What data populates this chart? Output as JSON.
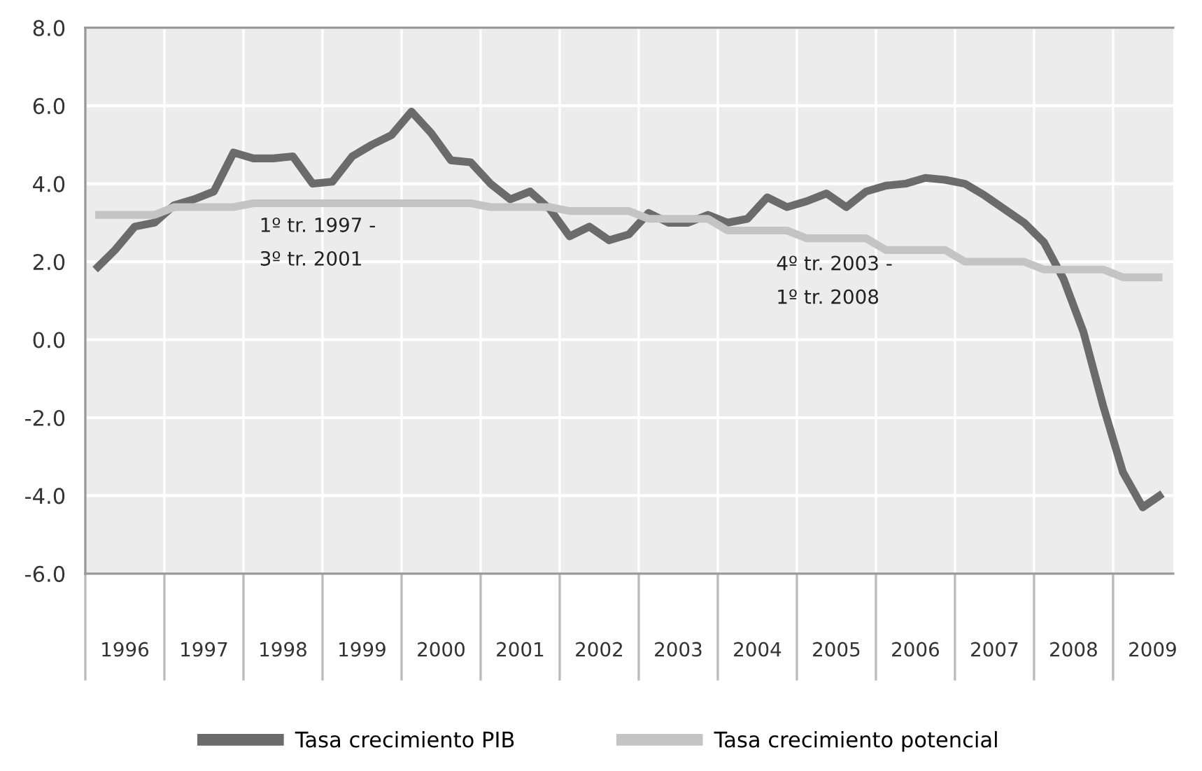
{
  "chart_data": {
    "type": "line",
    "x": [
      1996.125,
      1996.375,
      1996.625,
      1996.875,
      1997.125,
      1997.375,
      1997.625,
      1997.875,
      1998.125,
      1998.375,
      1998.625,
      1998.875,
      1999.125,
      1999.375,
      1999.625,
      1999.875,
      2000.125,
      2000.375,
      2000.625,
      2000.875,
      2001.125,
      2001.375,
      2001.625,
      2001.875,
      2002.125,
      2002.375,
      2002.625,
      2002.875,
      2003.125,
      2003.375,
      2003.625,
      2003.875,
      2004.125,
      2004.375,
      2004.625,
      2004.875,
      2005.125,
      2005.375,
      2005.625,
      2005.875,
      2006.125,
      2006.375,
      2006.625,
      2006.875,
      2007.125,
      2007.375,
      2007.625,
      2007.875,
      2008.125,
      2008.375,
      2008.625,
      2008.875,
      2009.125,
      2009.375,
      2009.625
    ],
    "series": [
      {
        "name": "Tasa crecimiento PIB",
        "color": "#6b6b6b",
        "values": [
          1.8,
          2.3,
          2.9,
          3.0,
          3.45,
          3.6,
          3.8,
          4.8,
          4.65,
          4.65,
          4.7,
          4.0,
          4.05,
          4.7,
          5.0,
          5.25,
          5.85,
          5.3,
          4.6,
          4.55,
          4.0,
          3.6,
          3.8,
          3.35,
          2.65,
          2.9,
          2.55,
          2.7,
          3.25,
          3.0,
          3.0,
          3.2,
          3.0,
          3.1,
          3.65,
          3.4,
          3.55,
          3.75,
          3.4,
          3.8,
          3.95,
          4.0,
          4.15,
          4.1,
          4.0,
          3.7,
          3.35,
          3.0,
          2.5,
          1.55,
          0.2,
          -1.7,
          -3.4,
          -4.3,
          -3.95
        ]
      },
      {
        "name": "Tasa crecimiento potencial",
        "color": "#c4c4c4",
        "values": [
          3.2,
          3.2,
          3.2,
          3.2,
          3.4,
          3.4,
          3.4,
          3.4,
          3.5,
          3.5,
          3.5,
          3.5,
          3.5,
          3.5,
          3.5,
          3.5,
          3.5,
          3.5,
          3.5,
          3.5,
          3.4,
          3.4,
          3.4,
          3.4,
          3.3,
          3.3,
          3.3,
          3.3,
          3.1,
          3.1,
          3.1,
          3.1,
          2.8,
          2.8,
          2.8,
          2.8,
          2.6,
          2.6,
          2.6,
          2.6,
          2.3,
          2.3,
          2.3,
          2.3,
          2.0,
          2.0,
          2.0,
          2.0,
          1.8,
          1.8,
          1.8,
          1.8,
          1.6,
          1.6,
          1.6
        ]
      }
    ],
    "xlim": [
      1996,
      2009.76
    ],
    "xticks": [
      {
        "value": 1996,
        "label": null
      },
      {
        "value": 1996.5,
        "label": "1996"
      },
      {
        "value": 1997,
        "label": null
      },
      {
        "value": 1997.5,
        "label": "1997"
      },
      {
        "value": 1998,
        "label": null
      },
      {
        "value": 1998.5,
        "label": "1998"
      },
      {
        "value": 1999,
        "label": null
      },
      {
        "value": 1999.5,
        "label": "1999"
      },
      {
        "value": 2000,
        "label": null
      },
      {
        "value": 2000.5,
        "label": "2000"
      },
      {
        "value": 2001,
        "label": null
      },
      {
        "value": 2001.5,
        "label": "2001"
      },
      {
        "value": 2002,
        "label": null
      },
      {
        "value": 2002.5,
        "label": "2002"
      },
      {
        "value": 2003,
        "label": null
      },
      {
        "value": 2003.5,
        "label": "2003"
      },
      {
        "value": 2004,
        "label": null
      },
      {
        "value": 2004.5,
        "label": "2004"
      },
      {
        "value": 2005,
        "label": null
      },
      {
        "value": 2005.5,
        "label": "2005"
      },
      {
        "value": 2006,
        "label": null
      },
      {
        "value": 2006.5,
        "label": "2006"
      },
      {
        "value": 2007,
        "label": null
      },
      {
        "value": 2007.5,
        "label": "2007"
      },
      {
        "value": 2008,
        "label": null
      },
      {
        "value": 2008.5,
        "label": "2008"
      },
      {
        "value": 2009,
        "label": null
      },
      {
        "value": 2009.5,
        "label": "2009"
      }
    ],
    "ylim": [
      -6,
      8
    ],
    "yticks": [
      {
        "value": -6,
        "label": "-6.0"
      },
      {
        "value": -4,
        "label": "-4.0"
      },
      {
        "value": -2,
        "label": "-2.0"
      },
      {
        "value": 0,
        "label": "0.0"
      },
      {
        "value": 2,
        "label": "2.0"
      },
      {
        "value": 4,
        "label": "4.0"
      },
      {
        "value": 6,
        "label": "6.0"
      },
      {
        "value": 8,
        "label": "8.0"
      }
    ],
    "grid": true,
    "legend": "bottom",
    "marker": "none",
    "line_style": "solid",
    "annotations": [
      "1º tr. 1997 -\n3º tr. 2001",
      "4º tr. 2003 -\n1º tr. 2008"
    ]
  }
}
